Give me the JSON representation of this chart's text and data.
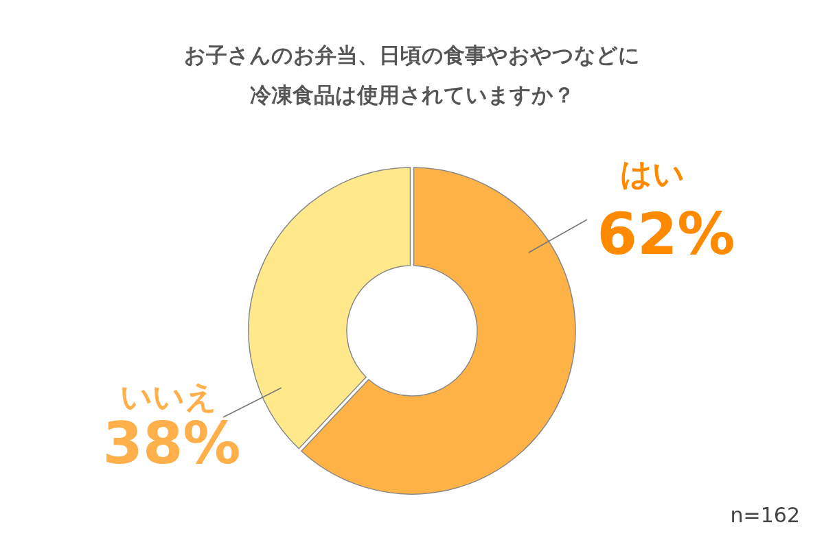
{
  "chart_data": {
    "type": "donut",
    "title": "お子さんのお弁当、日頃の食事やおやつなどに冷凍食品は使用されていますか？",
    "categories": [
      "はい",
      "いいえ"
    ],
    "values": [
      62,
      38
    ],
    "colors": [
      "#ffb347",
      "#ffe98a"
    ],
    "value_labels": [
      "62%",
      "38%"
    ],
    "annotations": [
      "n=162"
    ]
  }
}
